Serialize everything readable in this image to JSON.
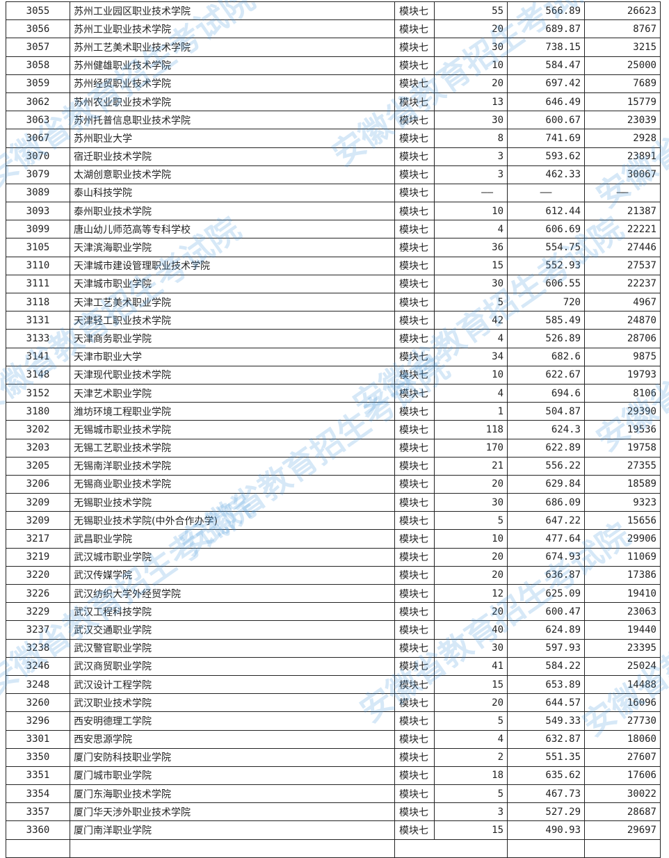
{
  "watermark": "安徽省教育招生考试院",
  "rows": [
    {
      "code": "3055",
      "name": "苏州工业园区职业技术学院",
      "module": "模块七",
      "plan": "55",
      "score": "566.89",
      "rank": "26623"
    },
    {
      "code": "3056",
      "name": "苏州工业职业技术学院",
      "module": "模块七",
      "plan": "20",
      "score": "689.87",
      "rank": "8767"
    },
    {
      "code": "3057",
      "name": "苏州工艺美术职业技术学院",
      "module": "模块七",
      "plan": "30",
      "score": "738.15",
      "rank": "3215"
    },
    {
      "code": "3058",
      "name": "苏州健雄职业技术学院",
      "module": "模块七",
      "plan": "10",
      "score": "584.47",
      "rank": "25000"
    },
    {
      "code": "3059",
      "name": "苏州经贸职业技术学院",
      "module": "模块七",
      "plan": "20",
      "score": "697.42",
      "rank": "7689"
    },
    {
      "code": "3062",
      "name": "苏州农业职业技术学院",
      "module": "模块七",
      "plan": "13",
      "score": "646.49",
      "rank": "15779"
    },
    {
      "code": "3063",
      "name": "苏州托普信息职业技术学院",
      "module": "模块七",
      "plan": "30",
      "score": "600.67",
      "rank": "23039"
    },
    {
      "code": "3067",
      "name": "苏州职业大学",
      "module": "模块七",
      "plan": "8",
      "score": "741.69",
      "rank": "2928"
    },
    {
      "code": "3070",
      "name": "宿迁职业技术学院",
      "module": "模块七",
      "plan": "3",
      "score": "593.62",
      "rank": "23891"
    },
    {
      "code": "3079",
      "name": "太湖创意职业技术学院",
      "module": "模块七",
      "plan": "3",
      "score": "462.33",
      "rank": "30067"
    },
    {
      "code": "3089",
      "name": "泰山科技学院",
      "module": "模块七",
      "plan": "——",
      "score": "——",
      "rank": "——"
    },
    {
      "code": "3093",
      "name": "泰州职业技术学院",
      "module": "模块七",
      "plan": "10",
      "score": "612.44",
      "rank": "21387"
    },
    {
      "code": "3099",
      "name": "唐山幼儿师范高等专科学校",
      "module": "模块七",
      "plan": "4",
      "score": "606.69",
      "rank": "22221"
    },
    {
      "code": "3105",
      "name": "天津滨海职业学院",
      "module": "模块七",
      "plan": "36",
      "score": "554.75",
      "rank": "27446"
    },
    {
      "code": "3110",
      "name": "天津城市建设管理职业技术学院",
      "module": "模块七",
      "plan": "15",
      "score": "552.93",
      "rank": "27537"
    },
    {
      "code": "3111",
      "name": "天津城市职业学院",
      "module": "模块七",
      "plan": "30",
      "score": "606.55",
      "rank": "22237"
    },
    {
      "code": "3118",
      "name": "天津工艺美术职业学院",
      "module": "模块七",
      "plan": "5",
      "score": "720",
      "rank": "4967"
    },
    {
      "code": "3131",
      "name": "天津轻工职业技术学院",
      "module": "模块七",
      "plan": "42",
      "score": "585.49",
      "rank": "24870"
    },
    {
      "code": "3133",
      "name": "天津商务职业学院",
      "module": "模块七",
      "plan": "4",
      "score": "526.89",
      "rank": "28706"
    },
    {
      "code": "3141",
      "name": "天津市职业大学",
      "module": "模块七",
      "plan": "34",
      "score": "682.6",
      "rank": "9875"
    },
    {
      "code": "3148",
      "name": "天津现代职业技术学院",
      "module": "模块七",
      "plan": "10",
      "score": "622.67",
      "rank": "19793"
    },
    {
      "code": "3152",
      "name": "天津艺术职业学院",
      "module": "模块七",
      "plan": "4",
      "score": "694.6",
      "rank": "8106"
    },
    {
      "code": "3180",
      "name": "潍坊环境工程职业学院",
      "module": "模块七",
      "plan": "1",
      "score": "504.87",
      "rank": "29390"
    },
    {
      "code": "3202",
      "name": "无锡城市职业技术学院",
      "module": "模块七",
      "plan": "118",
      "score": "624.3",
      "rank": "19536"
    },
    {
      "code": "3203",
      "name": "无锡工艺职业技术学院",
      "module": "模块七",
      "plan": "170",
      "score": "622.89",
      "rank": "19758"
    },
    {
      "code": "3205",
      "name": "无锡南洋职业技术学院",
      "module": "模块七",
      "plan": "21",
      "score": "556.22",
      "rank": "27355"
    },
    {
      "code": "3206",
      "name": "无锡商业职业技术学院",
      "module": "模块七",
      "plan": "20",
      "score": "629.84",
      "rank": "18589"
    },
    {
      "code": "3209",
      "name": "无锡职业技术学院",
      "module": "模块七",
      "plan": "30",
      "score": "686.09",
      "rank": "9323"
    },
    {
      "code": "3209",
      "name": "无锡职业技术学院(中外合作办学)",
      "module": "模块七",
      "plan": "5",
      "score": "647.22",
      "rank": "15656"
    },
    {
      "code": "3217",
      "name": "武昌职业学院",
      "module": "模块七",
      "plan": "10",
      "score": "477.64",
      "rank": "29906"
    },
    {
      "code": "3219",
      "name": "武汉城市职业学院",
      "module": "模块七",
      "plan": "20",
      "score": "674.93",
      "rank": "11069"
    },
    {
      "code": "3220",
      "name": "武汉传媒学院",
      "module": "模块七",
      "plan": "20",
      "score": "636.87",
      "rank": "17386"
    },
    {
      "code": "3226",
      "name": "武汉纺织大学外经贸学院",
      "module": "模块七",
      "plan": "12",
      "score": "625.09",
      "rank": "19410"
    },
    {
      "code": "3229",
      "name": "武汉工程科技学院",
      "module": "模块七",
      "plan": "20",
      "score": "600.47",
      "rank": "23063"
    },
    {
      "code": "3237",
      "name": "武汉交通职业学院",
      "module": "模块七",
      "plan": "40",
      "score": "624.89",
      "rank": "19440"
    },
    {
      "code": "3238",
      "name": "武汉警官职业学院",
      "module": "模块七",
      "plan": "30",
      "score": "597.93",
      "rank": "23395"
    },
    {
      "code": "3246",
      "name": "武汉商贸职业学院",
      "module": "模块七",
      "plan": "41",
      "score": "584.22",
      "rank": "25024"
    },
    {
      "code": "3248",
      "name": "武汉设计工程学院",
      "module": "模块七",
      "plan": "15",
      "score": "653.89",
      "rank": "14488"
    },
    {
      "code": "3260",
      "name": "武汉职业技术学院",
      "module": "模块七",
      "plan": "20",
      "score": "644.57",
      "rank": "16096"
    },
    {
      "code": "3296",
      "name": "西安明德理工学院",
      "module": "模块七",
      "plan": "5",
      "score": "549.33",
      "rank": "27730"
    },
    {
      "code": "3301",
      "name": "西安思源学院",
      "module": "模块七",
      "plan": "4",
      "score": "632.87",
      "rank": "18060"
    },
    {
      "code": "3350",
      "name": "厦门安防科技职业学院",
      "module": "模块七",
      "plan": "2",
      "score": "551.35",
      "rank": "27607"
    },
    {
      "code": "3351",
      "name": "厦门城市职业学院",
      "module": "模块七",
      "plan": "18",
      "score": "635.62",
      "rank": "17606"
    },
    {
      "code": "3354",
      "name": "厦门东海职业技术学院",
      "module": "模块七",
      "plan": "5",
      "score": "467.73",
      "rank": "30022"
    },
    {
      "code": "3357",
      "name": "厦门华天涉外职业技术学院",
      "module": "模块七",
      "plan": "3",
      "score": "527.29",
      "rank": "28687"
    },
    {
      "code": "3360",
      "name": "厦门南洋职业学院",
      "module": "模块七",
      "plan": "15",
      "score": "490.93",
      "rank": "29697"
    }
  ]
}
